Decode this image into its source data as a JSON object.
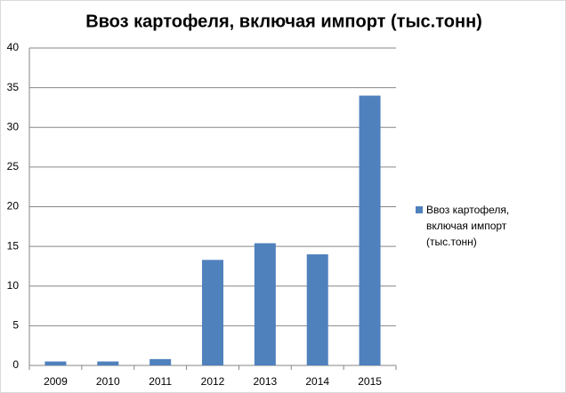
{
  "chart_data": {
    "type": "bar",
    "title": "Ввоз картофеля, включая импорт (тыс.тонн)",
    "categories": [
      "2009",
      "2010",
      "2011",
      "2012",
      "2013",
      "2014",
      "2015"
    ],
    "series": [
      {
        "name": "Ввоз картофеля,  включая импорт (тыс.тонн)",
        "color": "#4f81bd",
        "values": [
          0.5,
          0.5,
          0.8,
          13.3,
          15.4,
          14.0,
          34.0
        ]
      }
    ],
    "ylim": [
      0,
      40
    ],
    "yticks": [
      0,
      5,
      10,
      15,
      20,
      25,
      30,
      35,
      40
    ],
    "grid": true,
    "legend": "right"
  }
}
